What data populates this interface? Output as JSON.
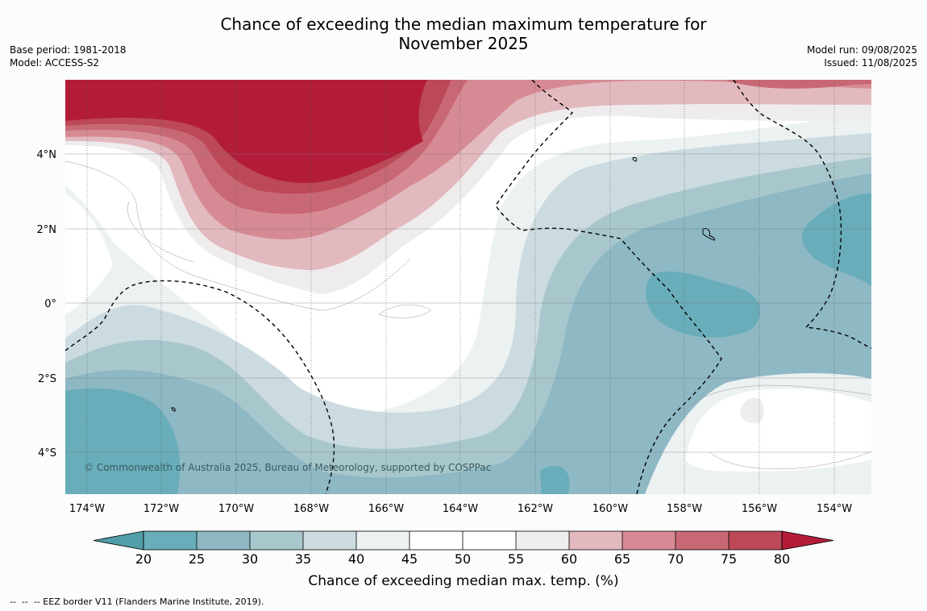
{
  "title": {
    "line1": "Chance of exceeding the median maximum temperature for",
    "line2": "November 2025"
  },
  "meta_left": {
    "base_period": "Base period: 1981-2018",
    "model": "Model: ACCESS-S2"
  },
  "meta_right": {
    "model_run": "Model run: 09/08/2025",
    "issued": "Issued: 11/08/2025"
  },
  "map": {
    "lon_range": [
      -174.6,
      -153.1
    ],
    "lat_range": [
      -5.2,
      5.8
    ],
    "lon_ticks": [
      {
        "value": -174,
        "label": "174°W"
      },
      {
        "value": -172,
        "label": "172°W"
      },
      {
        "value": -170,
        "label": "170°W"
      },
      {
        "value": -168,
        "label": "168°W"
      },
      {
        "value": -166,
        "label": "166°W"
      },
      {
        "value": -164,
        "label": "164°W"
      },
      {
        "value": -162,
        "label": "162°W"
      },
      {
        "value": -160,
        "label": "160°W"
      },
      {
        "value": -158,
        "label": "158°W"
      },
      {
        "value": -156,
        "label": "156°W"
      },
      {
        "value": -154,
        "label": "154°W"
      }
    ],
    "lat_ticks": [
      {
        "value": 4,
        "label": "4°N"
      },
      {
        "value": 2,
        "label": "2°N"
      },
      {
        "value": 0,
        "label": "0°"
      },
      {
        "value": -2,
        "label": "2°S"
      },
      {
        "value": -4,
        "label": "4°S"
      }
    ],
    "copyright": "© Commonwealth of Australia 2025, Bureau of Meteorology, supported by COSPPac"
  },
  "colorbar": {
    "title": "Chance of exceeding median max. temp. (%)",
    "ticks": [
      "20",
      "25",
      "30",
      "35",
      "40",
      "45",
      "50",
      "55",
      "60",
      "65",
      "70",
      "75",
      "80"
    ],
    "colors": [
      "#68adb9",
      "#8db8c4",
      "#a8c7cc",
      "#cbdbdf",
      "#ecf1f2",
      "#ffffff",
      "#ffffff",
      "#efeced",
      "#e2b9be",
      "#d68a94",
      "#c86874",
      "#bc4858"
    ],
    "under_color": "#4f9ea9",
    "over_color": "#b21c39"
  },
  "footer": "--  --  -- EEZ border V11 (Flanders Marine Institute, 2019)."
}
